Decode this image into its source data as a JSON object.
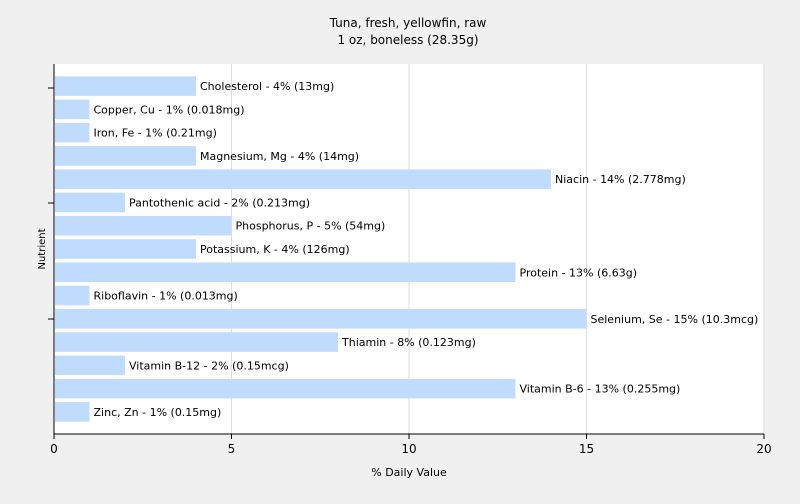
{
  "chart_data": {
    "type": "bar",
    "orientation": "horizontal",
    "title": "Tuna, fresh, yellowfin, raw",
    "subtitle": "1 oz, boneless (28.35g)",
    "xlabel": "% Daily Value",
    "ylabel": "Nutrient",
    "xlim": [
      0,
      20
    ],
    "xticks": [
      0,
      5,
      10,
      15,
      20
    ],
    "grid": true,
    "bar_color": "#bfdbfe",
    "background_color": "#f0f0f0",
    "plot_background_color": "#ffffff",
    "categories": [
      "Cholesterol",
      "Copper, Cu",
      "Iron, Fe",
      "Magnesium, Mg",
      "Niacin",
      "Pantothenic acid",
      "Phosphorus, P",
      "Potassium, K",
      "Protein",
      "Riboflavin",
      "Selenium, Se",
      "Thiamin",
      "Vitamin B-12",
      "Vitamin B-6",
      "Zinc, Zn"
    ],
    "values": [
      4,
      1,
      1,
      4,
      14,
      2,
      5,
      4,
      13,
      1,
      15,
      8,
      2,
      13,
      1
    ],
    "labels": [
      "Cholesterol - 4% (13mg)",
      "Copper, Cu - 1% (0.018mg)",
      "Iron, Fe - 1% (0.21mg)",
      "Magnesium, Mg - 4% (14mg)",
      "Niacin - 14% (2.778mg)",
      "Pantothenic acid - 2% (0.213mg)",
      "Phosphorus, P - 5% (54mg)",
      "Potassium, K - 4% (126mg)",
      "Protein - 13% (6.63g)",
      "Riboflavin - 1% (0.013mg)",
      "Selenium, Se - 15% (10.3mcg)",
      "Thiamin - 8% (0.123mg)",
      "Vitamin B-12 - 2% (0.15mcg)",
      "Vitamin B-6 - 13% (0.255mg)",
      "Zinc, Zn - 1% (0.15mg)"
    ]
  }
}
